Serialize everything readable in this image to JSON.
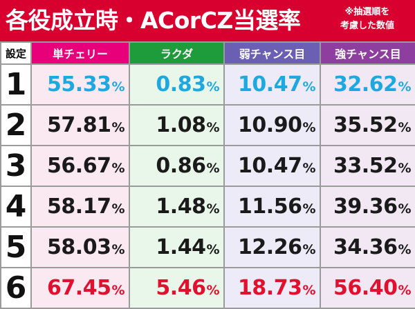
{
  "header": {
    "title": "各役成立時・ACorCZ当選率",
    "note_line1": "※抽選順を",
    "note_line2": "考慮した数値"
  },
  "table": {
    "corner_label": "設定",
    "columns": [
      "単チェリー",
      "ラクダ",
      "弱チャンス目",
      "強チャンス目"
    ],
    "percent_sign": "%",
    "rows": [
      {
        "setting": "1",
        "values": [
          "55.33",
          "0.83",
          "10.47",
          "32.62"
        ]
      },
      {
        "setting": "2",
        "values": [
          "57.81",
          "1.08",
          "10.90",
          "35.52"
        ]
      },
      {
        "setting": "3",
        "values": [
          "56.67",
          "0.86",
          "10.47",
          "33.52"
        ]
      },
      {
        "setting": "4",
        "values": [
          "58.17",
          "1.48",
          "11.56",
          "39.36"
        ]
      },
      {
        "setting": "5",
        "values": [
          "58.03",
          "1.44",
          "12.26",
          "34.36"
        ]
      },
      {
        "setting": "6",
        "values": [
          "67.45",
          "5.46",
          "18.73",
          "56.40"
        ]
      }
    ]
  },
  "colors": {
    "header_bg": "#d7002e",
    "col1_header": "#e8007a",
    "col2_header": "#1e9b3a",
    "col3_header": "#6b5fb3",
    "col4_header": "#8e3e9e",
    "setting1_text": "#1ea8e0",
    "setting6_text": "#e0102e"
  }
}
